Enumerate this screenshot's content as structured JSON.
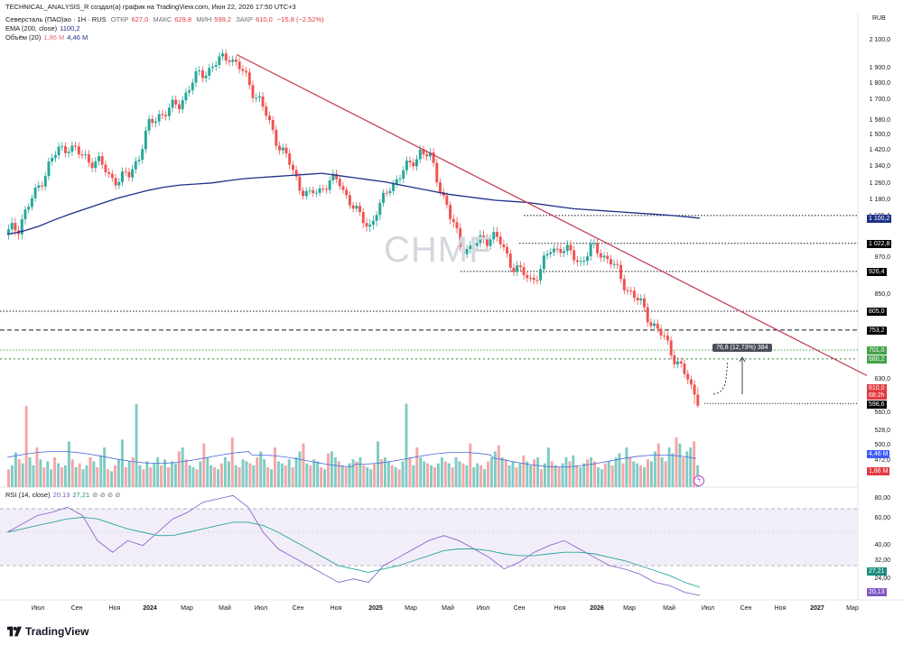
{
  "header": {
    "title": "TECHNICAL_ANALYSIS_R создал(а) график на TradingView.com, Июн 22, 2026 17:50 UTC+3",
    "symbol": "Северсталь (ПАО)ао · 1Н · RUS",
    "open_label": "ОТКР",
    "open": "627,0",
    "high_label": "МАКС",
    "high": "629,8",
    "low_label": "МИН",
    "low": "599,2",
    "close_label": "ЗАКР",
    "close": "610,0",
    "change": "−15,8 (−2,52%)",
    "ema_label": "EMA (200, close)",
    "ema_value": "1100,2",
    "vol_label": "Объём (20)",
    "vol_value": "1,86 M",
    "vol_ma": "4,46 M",
    "rsi_label": "RSI (14, close)",
    "rsi_value": "20,13",
    "rsi_ma": "27,21"
  },
  "currency": "RUB",
  "watermark": "CHMF",
  "tooltip": "76,8 (12,73%) 384",
  "price_axis": [
    {
      "label": "2 100,0",
      "v": 2100
    },
    {
      "label": "1 900,0",
      "v": 1900
    },
    {
      "label": "1 800,0",
      "v": 1800
    },
    {
      "label": "1 700,0",
      "v": 1700
    },
    {
      "label": "1 580,0",
      "v": 1580
    },
    {
      "label": "1 500,0",
      "v": 1500
    },
    {
      "label": "1 420,0",
      "v": 1420
    },
    {
      "label": "1 340,0",
      "v": 1340
    },
    {
      "label": "1 260,0",
      "v": 1260
    },
    {
      "label": "1 180,0",
      "v": 1180
    },
    {
      "label": "970,0",
      "v": 970
    },
    {
      "label": "850,0",
      "v": 850
    },
    {
      "label": "630,0",
      "v": 630
    },
    {
      "label": "560,0",
      "v": 560
    },
    {
      "label": "528,0",
      "v": 528
    },
    {
      "label": "500,0",
      "v": 500
    },
    {
      "label": "472,0",
      "v": 472
    }
  ],
  "badges": [
    {
      "label": "1 108,4",
      "bg": "#ffffff",
      "fg": "#131722",
      "v": 1108.4
    },
    {
      "label": "1 100,2",
      "bg": "#1c2f88",
      "fg": "#ffffff",
      "v": 1100.2
    },
    {
      "label": "1 022,8",
      "bg": "#000000",
      "fg": "#ffffff",
      "v": 1022.8
    },
    {
      "label": "926,4",
      "bg": "#000000",
      "fg": "#ffffff",
      "v": 926.4
    },
    {
      "label": "805,0",
      "bg": "#000000",
      "fg": "#ffffff",
      "v": 805
    },
    {
      "label": "753,2",
      "bg": "#000000",
      "fg": "#ffffff",
      "v": 753.2
    },
    {
      "label": "701,0",
      "bg": "#43a047",
      "fg": "#ffffff",
      "v": 701
    },
    {
      "label": "680,2",
      "bg": "#43a047",
      "fg": "#ffffff",
      "v": 680.2
    },
    {
      "label": "610,0",
      "bg": "#e0393f",
      "fg": "#ffffff",
      "v": 610
    },
    {
      "label": "68:2h",
      "bg": "#e0393f",
      "fg": "#ffffff",
      "v": 597
    },
    {
      "label": "598,6",
      "bg": "#000000",
      "fg": "#ffffff",
      "v": 584
    },
    {
      "label": "4,46 M",
      "bg": "#3d5afe",
      "fg": "#ffffff",
      "v": 0
    },
    {
      "label": "1,86 M",
      "bg": "#e0393f",
      "fg": "#ffffff",
      "v": 0
    }
  ],
  "rsi_axis": [
    {
      "label": "80,00",
      "v": 80
    },
    {
      "label": "60,00",
      "v": 60
    },
    {
      "label": "40,00",
      "v": 40
    },
    {
      "label": "32,00",
      "v": 32
    },
    {
      "label": "24,00",
      "v": 24
    }
  ],
  "rsi_badges": [
    {
      "label": "27,21",
      "bg": "#1c8c7e",
      "fg": "#ffffff",
      "v": 27.21
    },
    {
      "label": "20,13",
      "bg": "#7e57c2",
      "fg": "#ffffff",
      "v": 20.13
    }
  ],
  "time_axis": [
    {
      "label": "Июл",
      "bold": false
    },
    {
      "label": "Сен",
      "bold": false
    },
    {
      "label": "Ноя",
      "bold": false
    },
    {
      "label": "2024",
      "bold": true
    },
    {
      "label": "Мар",
      "bold": false
    },
    {
      "label": "Май",
      "bold": false
    },
    {
      "label": "Июл",
      "bold": false
    },
    {
      "label": "Сен",
      "bold": false
    },
    {
      "label": "Ноя",
      "bold": false
    },
    {
      "label": "2025",
      "bold": true
    },
    {
      "label": "Мар",
      "bold": false
    },
    {
      "label": "Май",
      "bold": false
    },
    {
      "label": "Июл",
      "bold": false
    },
    {
      "label": "Сен",
      "bold": false
    },
    {
      "label": "Ноя",
      "bold": false
    },
    {
      "label": "2026",
      "bold": true
    },
    {
      "label": "Мар",
      "bold": false
    },
    {
      "label": "Май",
      "bold": false
    },
    {
      "label": "Июл",
      "bold": false
    },
    {
      "label": "Сен",
      "bold": false
    },
    {
      "label": "Ноя",
      "bold": false
    },
    {
      "label": "2027",
      "bold": true
    },
    {
      "label": "Мар",
      "bold": false
    }
  ],
  "brand": "TradingView",
  "colors": {
    "up": "#26a69a",
    "down": "#ef5350",
    "ema": "#1c2f88",
    "trend": "#c0394b",
    "vol_up": "#80cbc4",
    "vol_down": "#f4a6a6"
  },
  "chart_data": {
    "type": "candlestick",
    "series_close": [
      1050,
      1080,
      1150,
      1250,
      1350,
      1420,
      1450,
      1400,
      1380,
      1360,
      1300,
      1280,
      1300,
      1400,
      1550,
      1620,
      1640,
      1680,
      1780,
      1860,
      1900,
      1950,
      2000,
      1900,
      1800,
      1700,
      1560,
      1450,
      1350,
      1250,
      1200,
      1230,
      1280,
      1260,
      1180,
      1100,
      1080,
      1150,
      1250,
      1300,
      1350,
      1420,
      1380,
      1250,
      1100,
      1020,
      1000,
      1030,
      1050,
      1020,
      960,
      920,
      900,
      930,
      1000,
      1010,
      980,
      960,
      1000,
      990,
      960,
      900,
      860,
      820,
      780,
      740,
      700,
      660,
      610
    ],
    "ema": [
      1050,
      1060,
      1075,
      1095,
      1115,
      1140,
      1165,
      1190,
      1210,
      1230,
      1245,
      1255,
      1260,
      1265,
      1275,
      1285,
      1290,
      1295,
      1300,
      1305,
      1310,
      1300,
      1290,
      1280,
      1270,
      1255,
      1240,
      1225,
      1210,
      1200,
      1190,
      1180,
      1175,
      1170,
      1160,
      1150,
      1140,
      1135,
      1130,
      1125,
      1120,
      1115,
      1110,
      1105,
      1100
    ],
    "trend_line": {
      "start_price": 2000,
      "end_price": 640
    },
    "levels": [
      1108.4,
      1022.8,
      926.4,
      805.0,
      753.2,
      701.0,
      680.2,
      598.6
    ],
    "rsi": [
      60,
      65,
      70,
      72,
      75,
      70,
      55,
      48,
      55,
      52,
      60,
      68,
      72,
      78,
      80,
      82,
      75,
      60,
      50,
      45,
      40,
      35,
      30,
      32,
      30,
      40,
      45,
      50,
      55,
      58,
      55,
      50,
      45,
      38,
      42,
      48,
      52,
      55,
      50,
      45,
      40,
      38,
      35,
      30,
      28,
      24,
      20
    ],
    "rsi_ma": [
      60,
      62,
      64,
      66,
      68,
      69,
      68,
      65,
      62,
      60,
      58,
      58,
      60,
      62,
      64,
      66,
      66,
      64,
      60,
      55,
      50,
      45,
      40,
      38,
      36,
      38,
      40,
      43,
      46,
      49,
      50,
      50,
      49,
      47,
      46,
      46,
      47,
      48,
      48,
      47,
      45,
      43,
      40,
      37,
      34,
      30,
      27
    ]
  }
}
